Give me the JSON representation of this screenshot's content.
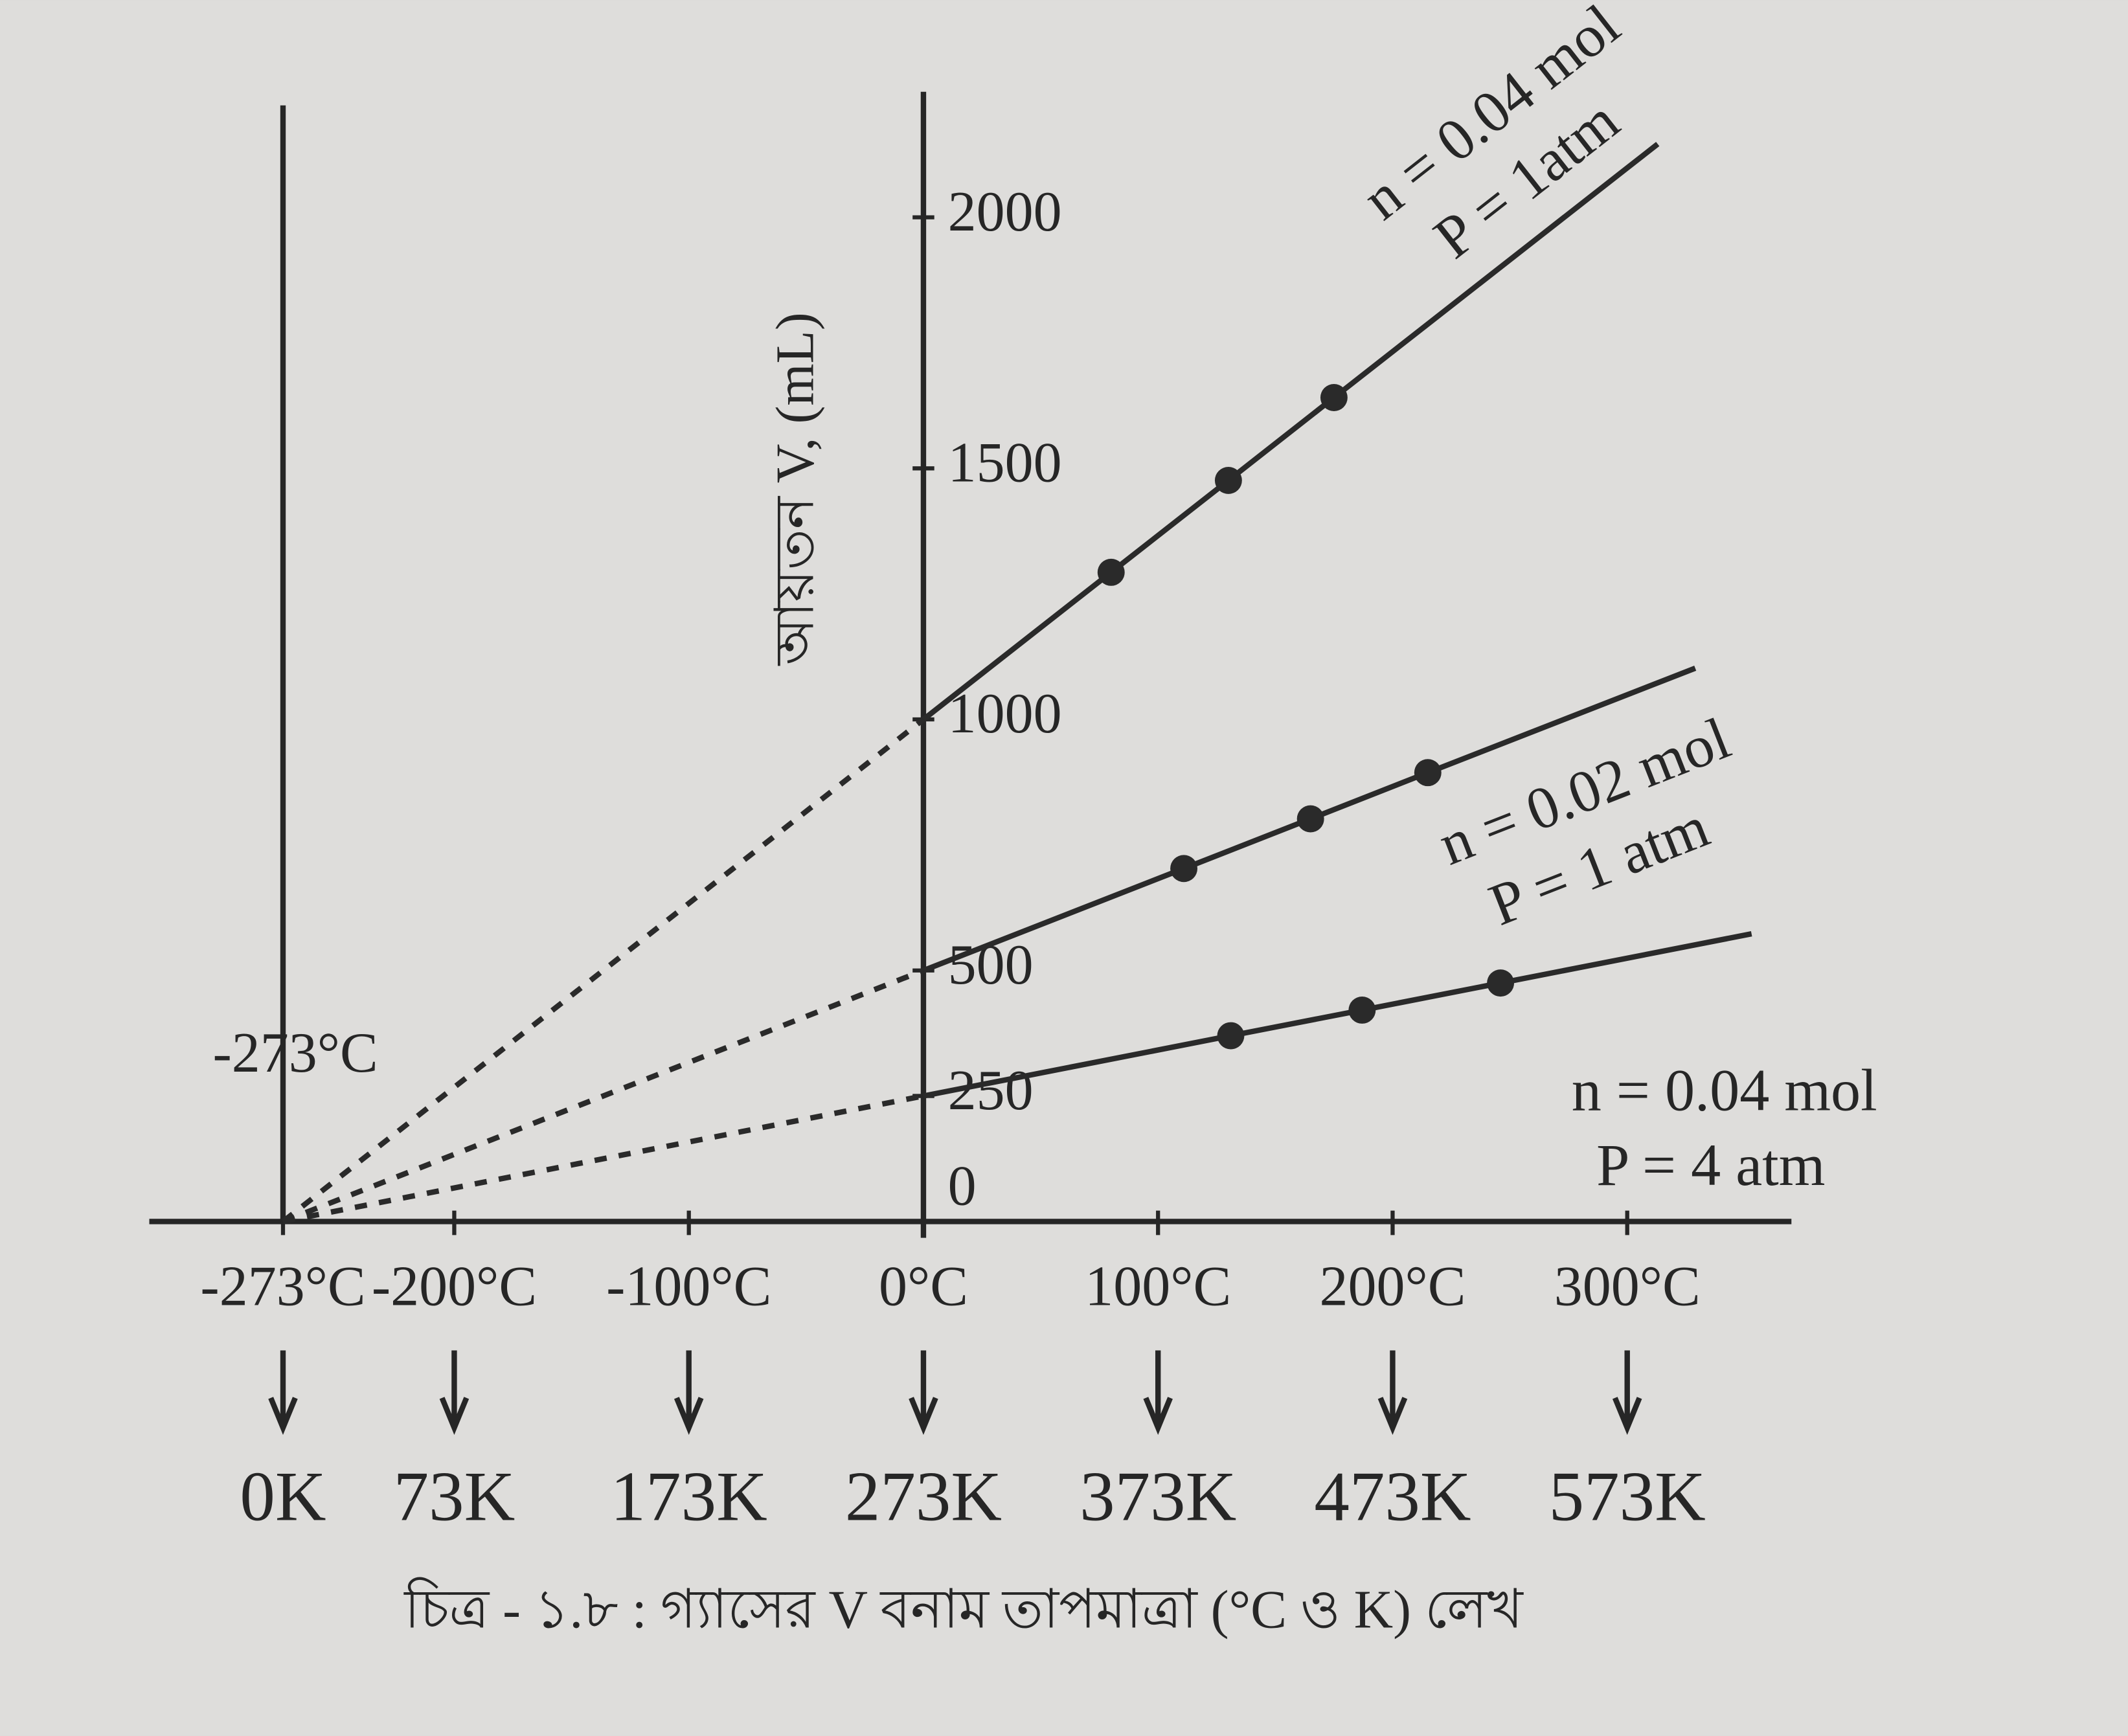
{
  "chart_data": {
    "type": "line",
    "caption": "চিত্র - ১.৮ : গ্যাসের V বনাম তাপমাত্রা (°C ও K) লেখ",
    "y_label": "আয়তন V, (mL)",
    "annotation": "-273°C",
    "xlim": [
      -330,
      370
    ],
    "ylim": [
      0,
      2250
    ],
    "xticks": [
      {
        "value": -273,
        "label": "-273°C"
      },
      {
        "value": -200,
        "label": "-200°C"
      },
      {
        "value": -100,
        "label": "-100°C"
      },
      {
        "value": 0,
        "label": "0°C"
      },
      {
        "value": 100,
        "label": "100°C"
      },
      {
        "value": 200,
        "label": "200°C"
      },
      {
        "value": 300,
        "label": "300°C"
      }
    ],
    "kelvin_labels": [
      "0K",
      "73K",
      "173K",
      "273K",
      "373K",
      "473K",
      "573K"
    ],
    "yticks": [
      0,
      250,
      500,
      1000,
      1500,
      2000
    ],
    "series": [
      {
        "name": "n = 0.04 mol",
        "pressure": "P = 1atm",
        "color": "#2a2a2a",
        "x": [
          -273,
          0,
          80,
          130,
          175,
          313
        ],
        "values": [
          0,
          1000,
          1293,
          1476,
          1641,
          2146
        ]
      },
      {
        "name": "n = 0.02 mol",
        "pressure": "P = 1 atm",
        "color": "#2a2a2a",
        "x": [
          -273,
          0,
          111,
          165,
          215,
          329
        ],
        "values": [
          0,
          500,
          703,
          802,
          894,
          1102
        ]
      },
      {
        "name": "n = 0.04 mol",
        "pressure": "P = 4 atm",
        "color": "#2a2a2a",
        "x": [
          -273,
          0,
          131,
          187,
          246,
          353
        ],
        "values": [
          0,
          250,
          370,
          421,
          475,
          573
        ]
      }
    ]
  }
}
